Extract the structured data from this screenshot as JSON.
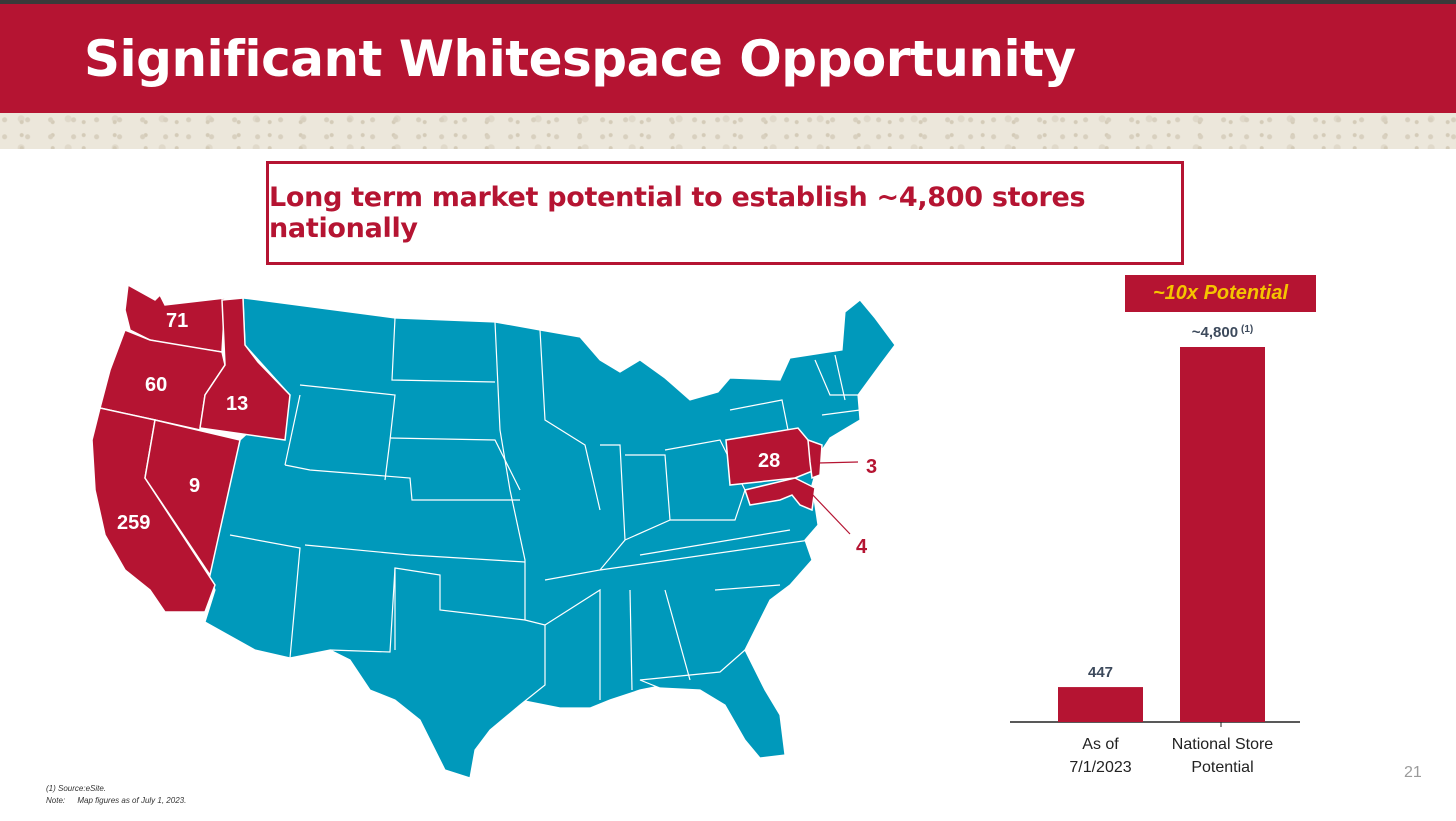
{
  "header": {
    "title": "Significant Whitespace Opportunity"
  },
  "callout": {
    "text": "Long term market potential to establish ~4,800 stores nationally"
  },
  "map": {
    "labels": {
      "wa": "71",
      "or": "60",
      "id": "13",
      "nv": "9",
      "ca": "259",
      "pa": "28",
      "nj": "3",
      "md": "4"
    },
    "colors": {
      "present": "#b51432",
      "whitespace": "#0099bb"
    }
  },
  "badge": {
    "text": "~10x Potential"
  },
  "chart_data": {
    "type": "bar",
    "categories": [
      "As of 7/1/2023",
      "National Store Potential"
    ],
    "category_lines": [
      [
        "As of",
        "7/1/2023"
      ],
      [
        "National Store",
        "Potential"
      ]
    ],
    "values": [
      447,
      4800
    ],
    "data_labels": [
      "447",
      "~4,800"
    ],
    "data_label_superscripts": [
      "",
      "(1)"
    ],
    "bar_color": "#b51432",
    "ylim": [
      0,
      4800
    ]
  },
  "footnotes": {
    "source": "(1) Source:eSite.",
    "note_label": "Note:",
    "note_text": "Map figures as of July 1, 2023."
  },
  "page_number": "21"
}
